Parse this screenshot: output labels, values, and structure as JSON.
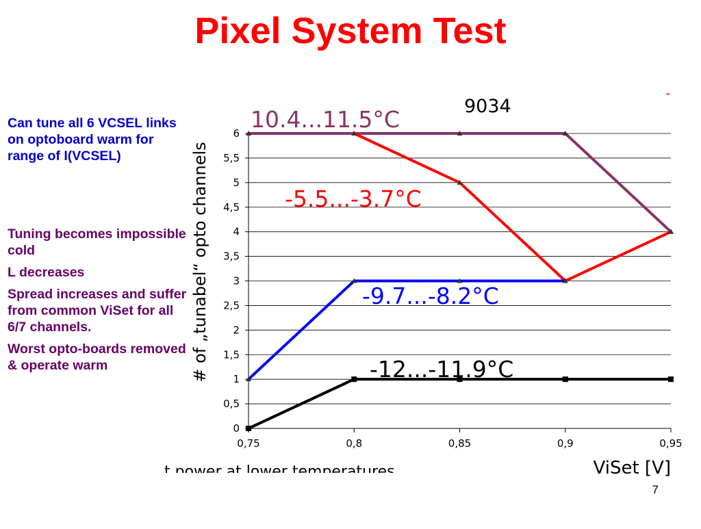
{
  "slide": {
    "title": "Pixel System Test",
    "page_number": "7",
    "notes": [
      {
        "text": "Can tune all 6 VCSEL links on optoboard warm for range of I(VCSEL)",
        "color": "#0000cc"
      },
      {
        "text": "Tuning becomes impossible cold",
        "color": "#660066"
      },
      {
        "text": "L decreases",
        "color": "#660066"
      },
      {
        "text": "Spread increases and suffer from common ViSet for all 6/7 channels.",
        "color": "#660066"
      },
      {
        "text": "Worst opto-boards removed & operate warm",
        "color": "#660066"
      }
    ],
    "cut_off_text": "t power at lower temperatures"
  },
  "chart_data": {
    "type": "line",
    "title": "9034",
    "xlabel": "ViSet [V]",
    "ylabel": "# of „tunabel“ opto channels",
    "x": [
      0.75,
      0.8,
      0.85,
      0.9,
      0.95
    ],
    "x_tick_labels": [
      "0,75",
      "0,8",
      "0,85",
      "0,9",
      "0,95"
    ],
    "xlim": [
      0.75,
      0.95
    ],
    "ylim": [
      0,
      6
    ],
    "y_ticks": [
      0,
      0.5,
      1,
      1.5,
      2,
      2.5,
      3,
      3.5,
      4,
      4.5,
      5,
      5.5,
      6
    ],
    "y_tick_labels": [
      "0",
      "0,5",
      "1",
      "1,5",
      "2",
      "2,5",
      "3",
      "3,5",
      "4",
      "4,5",
      "5",
      "5,5",
      "6"
    ],
    "grid": "horizontal",
    "series": [
      {
        "label": "10.4...11.5°C",
        "color": "#883366",
        "values": [
          6,
          6,
          6,
          6,
          4
        ]
      },
      {
        "label": "-5.5...-3.7°C",
        "color": "#ff0000",
        "values": [
          null,
          6,
          5,
          3,
          4
        ]
      },
      {
        "label": "-9.7...-8.2°C",
        "color": "#0000ff",
        "values": [
          1,
          3,
          3,
          3,
          null
        ]
      },
      {
        "label": "-12...-11.9°C",
        "color": "#000000",
        "values": [
          0,
          1,
          1,
          1,
          1
        ]
      }
    ]
  }
}
